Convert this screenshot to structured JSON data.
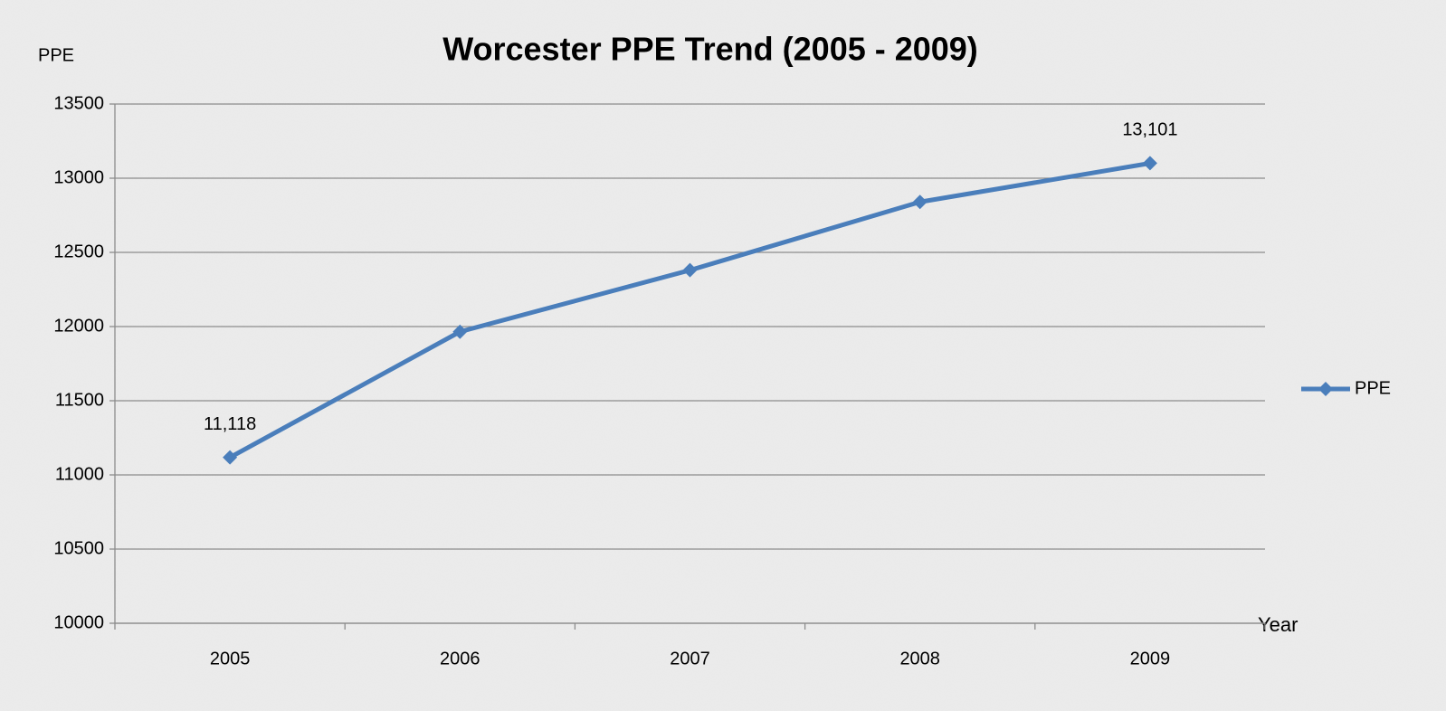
{
  "chart_data": {
    "type": "line",
    "title": "Worcester PPE Trend (2005 - 2009)",
    "y_label": "PPE",
    "x_label": "Year",
    "categories": [
      "2005",
      "2006",
      "2007",
      "2008",
      "2009"
    ],
    "series": [
      {
        "name": "PPE",
        "color": "#4a7ebb",
        "values": [
          11118,
          11965,
          12380,
          12840,
          13101
        ],
        "value_labels": [
          "11,118",
          null,
          null,
          null,
          "13,101"
        ]
      }
    ],
    "ylim": [
      10000,
      13500
    ],
    "yticks": [
      10000,
      10500,
      11000,
      11500,
      12000,
      12500,
      13000,
      13500
    ],
    "grid": true,
    "legend": "right"
  }
}
